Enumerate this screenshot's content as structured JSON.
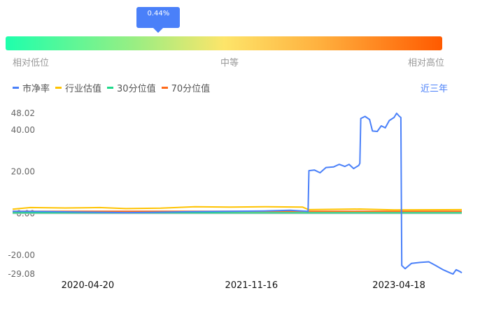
{
  "gauge": {
    "tooltip": "0.44%",
    "marker_position": 0.35,
    "low_label": "相对低位",
    "mid_label": "中等",
    "high_label": "相对高位",
    "gradient_colors": [
      "#1effac",
      "#fde56a",
      "#ff5a00"
    ]
  },
  "legend": [
    {
      "name": "市净率",
      "color": "#4a80f9"
    },
    {
      "name": "行业估值",
      "color": "#ffc300"
    },
    {
      "name": "30分位值",
      "color": "#1ed98a"
    },
    {
      "name": "70分位值",
      "color": "#ff6a1a"
    }
  ],
  "range_button": "近三年",
  "chart_data": {
    "type": "line",
    "xlim": [
      "2019-07-31",
      "2023-11-25"
    ],
    "ylim": [
      -29.08,
      48.02
    ],
    "y_ticks": [
      "48.02",
      "40.00",
      "20.00",
      "0.00",
      "-20.00",
      "-29.08"
    ],
    "x_ticks": [
      "2020-04-20",
      "2021-11-16",
      "2023-04-18"
    ],
    "grid": false,
    "series": [
      {
        "name": "市净率",
        "color": "#4a80f9",
        "points": [
          [
            "2019-07-31",
            1.0
          ],
          [
            "2019-12-01",
            0.9
          ],
          [
            "2020-04-20",
            0.6
          ],
          [
            "2020-09-01",
            0.4
          ],
          [
            "2020-12-01",
            0.5
          ],
          [
            "2021-04-01",
            0.8
          ],
          [
            "2021-09-01",
            1.0
          ],
          [
            "2022-01-01",
            1.2
          ],
          [
            "2022-04-01",
            1.5
          ],
          [
            "2022-06-03",
            1.0
          ],
          [
            "2022-06-06",
            20.5
          ],
          [
            "2022-06-25",
            20.8
          ],
          [
            "2022-07-15",
            19.5
          ],
          [
            "2022-08-05",
            22
          ],
          [
            "2022-09-01",
            22.3
          ],
          [
            "2022-09-20",
            23.5
          ],
          [
            "2022-10-10",
            22.5
          ],
          [
            "2022-10-25",
            23.5
          ],
          [
            "2022-11-10",
            21.5
          ],
          [
            "2022-11-28",
            23
          ],
          [
            "2022-12-02",
            24
          ],
          [
            "2022-12-05",
            45.5
          ],
          [
            "2022-12-20",
            46.5
          ],
          [
            "2023-01-05",
            45
          ],
          [
            "2023-01-15",
            39.5
          ],
          [
            "2023-02-01",
            39.3
          ],
          [
            "2023-02-15",
            42
          ],
          [
            "2023-03-01",
            41
          ],
          [
            "2023-03-15",
            44.5
          ],
          [
            "2023-04-01",
            46
          ],
          [
            "2023-04-10",
            48
          ],
          [
            "2023-04-20",
            46.5
          ],
          [
            "2023-04-25",
            46
          ],
          [
            "2023-04-28",
            -25
          ],
          [
            "2023-05-10",
            -26.5
          ],
          [
            "2023-06-01",
            -24
          ],
          [
            "2023-07-01",
            -23.5
          ],
          [
            "2023-08-01",
            -23.2
          ],
          [
            "2023-08-25",
            -25
          ],
          [
            "2023-09-20",
            -27
          ],
          [
            "2023-10-15",
            -28.5
          ],
          [
            "2023-10-25",
            -29.08
          ],
          [
            "2023-11-05",
            -27
          ],
          [
            "2023-11-20",
            -28
          ],
          [
            "2023-11-25",
            -28.5
          ]
        ]
      },
      {
        "name": "行业估值",
        "color": "#ffc300",
        "points": [
          [
            "2019-07-31",
            2.0
          ],
          [
            "2019-10-01",
            2.8
          ],
          [
            "2020-02-01",
            2.6
          ],
          [
            "2020-06-01",
            2.8
          ],
          [
            "2020-09-01",
            2.3
          ],
          [
            "2021-01-01",
            2.5
          ],
          [
            "2021-05-01",
            3.2
          ],
          [
            "2021-09-01",
            3.0
          ],
          [
            "2022-01-01",
            3.2
          ],
          [
            "2022-05-15",
            3.0
          ],
          [
            "2022-06-05",
            1.8
          ],
          [
            "2022-12-01",
            2.1
          ],
          [
            "2023-04-01",
            1.7
          ],
          [
            "2023-11-25",
            1.8
          ]
        ]
      },
      {
        "name": "30分位值",
        "color": "#1ed98a",
        "points": [
          [
            "2019-07-31",
            0.3
          ],
          [
            "2023-11-25",
            0.3
          ]
        ]
      },
      {
        "name": "70分位值",
        "color": "#ff6a1a",
        "points": [
          [
            "2019-07-31",
            1.0
          ],
          [
            "2023-11-25",
            1.0
          ]
        ]
      }
    ]
  }
}
